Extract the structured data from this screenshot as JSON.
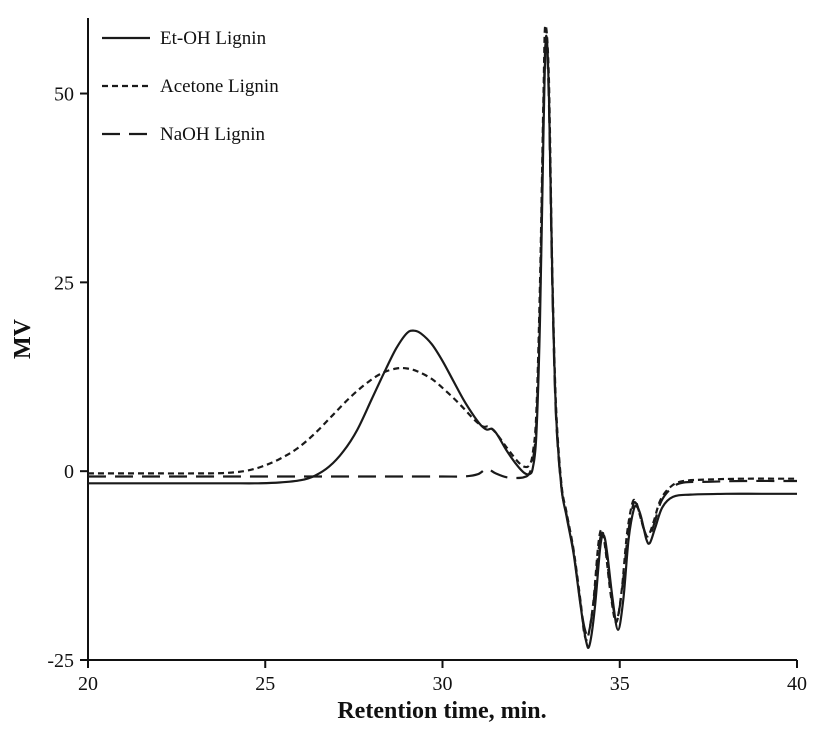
{
  "chart_data": {
    "type": "line",
    "title": "",
    "xlabel": "Retention time, min.",
    "ylabel": "MV",
    "xlim": [
      20,
      40
    ],
    "ylim": [
      -25,
      60
    ],
    "xticks": [
      20,
      25,
      30,
      35,
      40
    ],
    "yticks": [
      -25,
      0,
      25,
      50
    ],
    "grid": false,
    "legend_position": "top-left",
    "axis_color": "#111111",
    "series": [
      {
        "name": "Et-OH Lignin",
        "line_style": "solid",
        "color": "#1a1a1a",
        "points": [
          [
            20,
            -1.6
          ],
          [
            21,
            -1.6
          ],
          [
            22,
            -1.6
          ],
          [
            23,
            -1.6
          ],
          [
            24,
            -1.6
          ],
          [
            24.8,
            -1.6
          ],
          [
            25.4,
            -1.5
          ],
          [
            26,
            -1.2
          ],
          [
            26.4,
            -0.6
          ],
          [
            26.8,
            0.6
          ],
          [
            27.2,
            2.6
          ],
          [
            27.6,
            5.5
          ],
          [
            28,
            9.5
          ],
          [
            28.4,
            13.5
          ],
          [
            28.7,
            16.3
          ],
          [
            29,
            18.3
          ],
          [
            29.2,
            18.6
          ],
          [
            29.4,
            18.2
          ],
          [
            29.7,
            16.8
          ],
          [
            30,
            14.6
          ],
          [
            30.3,
            12
          ],
          [
            30.6,
            9.4
          ],
          [
            30.9,
            7.2
          ],
          [
            31.1,
            6
          ],
          [
            31.25,
            5.5
          ],
          [
            31.4,
            5.6
          ],
          [
            31.55,
            4.8
          ],
          [
            31.8,
            2.8
          ],
          [
            32.1,
            0.8
          ],
          [
            32.3,
            -0.2
          ],
          [
            32.45,
            -0.4
          ],
          [
            32.55,
            0.5
          ],
          [
            32.65,
            5
          ],
          [
            32.75,
            20
          ],
          [
            32.85,
            45
          ],
          [
            32.92,
            57.5
          ],
          [
            33,
            50
          ],
          [
            33.1,
            25
          ],
          [
            33.2,
            8
          ],
          [
            33.35,
            -2
          ],
          [
            33.5,
            -6
          ],
          [
            33.7,
            -11
          ],
          [
            33.9,
            -18
          ],
          [
            34.05,
            -22.5
          ],
          [
            34.15,
            -23
          ],
          [
            34.3,
            -18
          ],
          [
            34.45,
            -10
          ],
          [
            34.55,
            -8.5
          ],
          [
            34.65,
            -11
          ],
          [
            34.8,
            -17
          ],
          [
            34.95,
            -21
          ],
          [
            35.1,
            -17
          ],
          [
            35.25,
            -9
          ],
          [
            35.4,
            -5
          ],
          [
            35.5,
            -4.8
          ],
          [
            35.6,
            -6
          ],
          [
            35.75,
            -9
          ],
          [
            35.85,
            -9.5
          ],
          [
            36,
            -7.5
          ],
          [
            36.2,
            -4.8
          ],
          [
            36.5,
            -3.4
          ],
          [
            37,
            -3.1
          ],
          [
            38,
            -3
          ],
          [
            39,
            -3
          ],
          [
            40,
            -3
          ]
        ]
      },
      {
        "name": "Acetone Lignin",
        "line_style": "short-dash",
        "color": "#1a1a1a",
        "points": [
          [
            20,
            -0.3
          ],
          [
            21,
            -0.3
          ],
          [
            22,
            -0.3
          ],
          [
            23,
            -0.3
          ],
          [
            23.8,
            -0.25
          ],
          [
            24.4,
            0
          ],
          [
            24.9,
            0.6
          ],
          [
            25.4,
            1.6
          ],
          [
            25.9,
            3
          ],
          [
            26.4,
            5
          ],
          [
            26.9,
            7.4
          ],
          [
            27.4,
            9.8
          ],
          [
            27.9,
            11.8
          ],
          [
            28.3,
            13
          ],
          [
            28.7,
            13.6
          ],
          [
            29,
            13.6
          ],
          [
            29.3,
            13.2
          ],
          [
            29.7,
            12.2
          ],
          [
            30.1,
            10.6
          ],
          [
            30.5,
            8.8
          ],
          [
            30.9,
            6.8
          ],
          [
            31.15,
            5.9
          ],
          [
            31.3,
            5.9
          ],
          [
            31.5,
            5.1
          ],
          [
            31.8,
            3.2
          ],
          [
            32.1,
            1.4
          ],
          [
            32.3,
            0.6
          ],
          [
            32.45,
            0.8
          ],
          [
            32.55,
            2.5
          ],
          [
            32.65,
            8
          ],
          [
            32.75,
            25
          ],
          [
            32.85,
            50
          ],
          [
            32.9,
            59
          ],
          [
            33,
            52
          ],
          [
            33.1,
            26
          ],
          [
            33.2,
            9
          ],
          [
            33.35,
            -1.5
          ],
          [
            33.5,
            -5.5
          ],
          [
            33.7,
            -10.5
          ],
          [
            33.9,
            -17.5
          ],
          [
            34,
            -21.5
          ],
          [
            34.1,
            -22
          ],
          [
            34.25,
            -17.5
          ],
          [
            34.4,
            -9.5
          ],
          [
            34.5,
            -7.8
          ],
          [
            34.6,
            -10.5
          ],
          [
            34.75,
            -16.5
          ],
          [
            34.9,
            -20
          ],
          [
            35.05,
            -16
          ],
          [
            35.2,
            -8.5
          ],
          [
            35.35,
            -4.3
          ],
          [
            35.45,
            -4
          ],
          [
            35.55,
            -5.5
          ],
          [
            35.7,
            -8
          ],
          [
            35.8,
            -8.6
          ],
          [
            35.95,
            -6.8
          ],
          [
            36.15,
            -3.8
          ],
          [
            36.45,
            -2
          ],
          [
            36.8,
            -1.3
          ],
          [
            37.5,
            -1.1
          ],
          [
            38.5,
            -1
          ],
          [
            40,
            -1
          ]
        ]
      },
      {
        "name": "NaOH Lignin",
        "line_style": "long-dash",
        "color": "#1a1a1a",
        "points": [
          [
            20,
            -0.7
          ],
          [
            21,
            -0.7
          ],
          [
            22,
            -0.7
          ],
          [
            23,
            -0.7
          ],
          [
            24,
            -0.7
          ],
          [
            25,
            -0.7
          ],
          [
            26,
            -0.7
          ],
          [
            27,
            -0.7
          ],
          [
            28,
            -0.7
          ],
          [
            29,
            -0.7
          ],
          [
            30,
            -0.7
          ],
          [
            30.6,
            -0.7
          ],
          [
            31,
            -0.4
          ],
          [
            31.25,
            0.3
          ],
          [
            31.5,
            -0.3
          ],
          [
            31.8,
            -0.8
          ],
          [
            32.1,
            -0.9
          ],
          [
            32.3,
            -0.8
          ],
          [
            32.45,
            -0.3
          ],
          [
            32.55,
            1.5
          ],
          [
            32.65,
            6.5
          ],
          [
            32.75,
            22
          ],
          [
            32.85,
            48
          ],
          [
            32.92,
            57
          ],
          [
            33,
            49
          ],
          [
            33.1,
            24
          ],
          [
            33.2,
            7.5
          ],
          [
            33.35,
            -2
          ],
          [
            33.5,
            -5.8
          ],
          [
            33.7,
            -10.8
          ],
          [
            33.9,
            -17.8
          ],
          [
            34.02,
            -21
          ],
          [
            34.12,
            -21.5
          ],
          [
            34.27,
            -17
          ],
          [
            34.42,
            -9.8
          ],
          [
            34.52,
            -8.2
          ],
          [
            34.62,
            -10.8
          ],
          [
            34.77,
            -16.8
          ],
          [
            34.92,
            -19.5
          ],
          [
            35.07,
            -15.5
          ],
          [
            35.22,
            -8.8
          ],
          [
            35.37,
            -4.6
          ],
          [
            35.47,
            -4.3
          ],
          [
            35.57,
            -5.8
          ],
          [
            35.72,
            -8.2
          ],
          [
            35.82,
            -8.8
          ],
          [
            35.97,
            -7
          ],
          [
            36.17,
            -4
          ],
          [
            36.47,
            -2.2
          ],
          [
            36.8,
            -1.5
          ],
          [
            37.5,
            -1.4
          ],
          [
            38.5,
            -1.3
          ],
          [
            40,
            -1.3
          ]
        ]
      }
    ]
  }
}
